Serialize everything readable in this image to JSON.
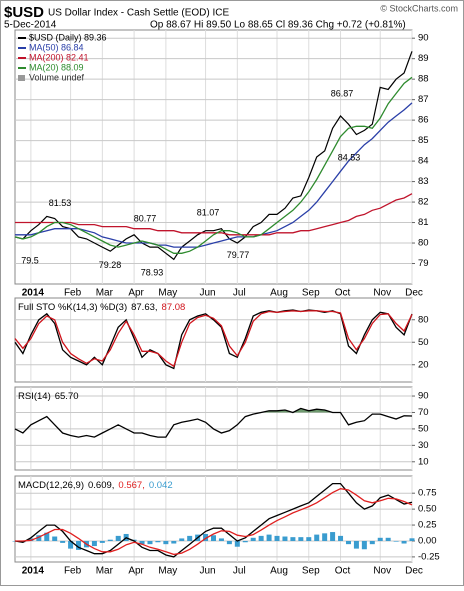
{
  "header": {
    "symbol": "$USD",
    "title": "US Dollar Index - Cash Settle (EOD) ICE",
    "source": "© StockCharts.com",
    "date": "5-Dec-2014",
    "quote": "Op 88.67 Hi 89.50 Lo 88.65 Cl 89.36 Chg +0.72 (+0.81%)"
  },
  "chart_data": [
    {
      "type": "line",
      "categories": [
        null,
        null,
        "2014",
        null,
        null,
        null,
        null,
        "Feb",
        null,
        null,
        null,
        "Mar",
        null,
        null,
        null,
        "Apr",
        null,
        null,
        null,
        "May",
        null,
        null,
        null,
        null,
        "Jun",
        null,
        null,
        null,
        "Jul",
        null,
        null,
        null,
        null,
        "Aug",
        null,
        null,
        null,
        "Sep",
        null,
        null,
        null,
        "Oct",
        null,
        null,
        null,
        null,
        "Nov",
        null,
        null,
        null,
        "Dec"
      ],
      "ylim": [
        78,
        90.4
      ],
      "yticks": [
        79,
        80,
        81,
        82,
        83,
        84,
        85,
        86,
        87,
        88,
        89,
        90
      ],
      "grid": true,
      "series": [
        {
          "name": "$USD (Daily) 89.36",
          "color": "#000000",
          "values": [
            80.3,
            80.2,
            80.6,
            80.9,
            81.3,
            81.2,
            80.8,
            80.7,
            80.3,
            80.2,
            80.0,
            79.8,
            79.6,
            79.9,
            80.2,
            80.4,
            80.0,
            79.8,
            79.8,
            79.5,
            79.2,
            79.8,
            80.1,
            80.4,
            80.6,
            80.6,
            80.7,
            80.2,
            80.0,
            80.3,
            80.8,
            81.0,
            81.4,
            81.4,
            81.7,
            82.2,
            82.3,
            83.2,
            84.2,
            84.5,
            85.6,
            86.2,
            85.8,
            85.3,
            85.5,
            85.8,
            87.6,
            87.5,
            88.0,
            88.3,
            89.36
          ]
        },
        {
          "name": "MA(50) 86.84",
          "color": "#2a3fa8",
          "values": [
            80.4,
            80.4,
            80.4,
            80.5,
            80.6,
            80.7,
            80.7,
            80.7,
            80.7,
            80.6,
            80.5,
            80.3,
            80.2,
            80.1,
            80.0,
            80.0,
            80.0,
            80.0,
            79.9,
            79.9,
            79.8,
            79.8,
            79.8,
            79.8,
            79.9,
            80.0,
            80.1,
            80.2,
            80.3,
            80.3,
            80.3,
            80.4,
            80.5,
            80.6,
            80.8,
            81.0,
            81.3,
            81.6,
            82.0,
            82.5,
            83.0,
            83.5,
            84.0,
            84.4,
            84.8,
            85.1,
            85.5,
            85.9,
            86.2,
            86.5,
            86.84
          ]
        },
        {
          "name": "MA(200) 82.41",
          "color": "#c0142c",
          "values": [
            81.0,
            81.0,
            81.0,
            81.0,
            81.0,
            81.0,
            81.0,
            81.0,
            80.9,
            80.9,
            80.9,
            80.8,
            80.8,
            80.8,
            80.8,
            80.7,
            80.7,
            80.7,
            80.6,
            80.6,
            80.6,
            80.5,
            80.5,
            80.5,
            80.5,
            80.5,
            80.5,
            80.4,
            80.4,
            80.4,
            80.4,
            80.4,
            80.4,
            80.5,
            80.5,
            80.5,
            80.6,
            80.6,
            80.7,
            80.8,
            80.9,
            81.0,
            81.1,
            81.3,
            81.4,
            81.6,
            81.7,
            81.9,
            82.1,
            82.2,
            82.41
          ]
        },
        {
          "name": "MA(20) 88.09",
          "color": "#2e8b2e",
          "values": [
            80.3,
            80.2,
            80.3,
            80.5,
            80.8,
            81.0,
            81.0,
            80.9,
            80.7,
            80.5,
            80.3,
            80.1,
            79.9,
            79.8,
            79.9,
            80.0,
            80.1,
            80.0,
            79.9,
            79.7,
            79.5,
            79.5,
            79.6,
            79.8,
            80.1,
            80.4,
            80.6,
            80.6,
            80.5,
            80.3,
            80.3,
            80.4,
            80.7,
            81.0,
            81.3,
            81.6,
            82.0,
            82.5,
            83.1,
            83.8,
            84.5,
            85.2,
            85.6,
            85.7,
            85.7,
            85.6,
            86.1,
            86.8,
            87.3,
            87.8,
            88.09
          ]
        }
      ],
      "legend_extra": "Volume undef",
      "annotations": [
        81.53,
        80.77,
        81.07,
        86.87,
        79.5,
        79.28,
        78.93,
        79.77,
        84.53
      ]
    },
    {
      "type": "line",
      "label": "Full STO %K(14,3) %D(3)",
      "readings": [
        "87.63,",
        "87.08"
      ],
      "ylim": [
        -3,
        109
      ],
      "yticks": [
        20,
        50,
        80
      ],
      "grid": true,
      "series": [
        {
          "color": "#000000",
          "values": [
            50,
            35,
            60,
            80,
            88,
            75,
            40,
            30,
            25,
            20,
            30,
            20,
            45,
            70,
            80,
            55,
            30,
            40,
            35,
            20,
            15,
            60,
            80,
            85,
            88,
            80,
            70,
            35,
            30,
            55,
            85,
            90,
            92,
            90,
            92,
            93,
            91,
            93,
            92,
            90,
            92,
            88,
            45,
            35,
            60,
            80,
            90,
            88,
            70,
            60,
            87.63
          ]
        },
        {
          "color": "#d0141c",
          "values": [
            55,
            42,
            55,
            75,
            85,
            80,
            50,
            35,
            28,
            22,
            28,
            25,
            40,
            62,
            78,
            60,
            38,
            38,
            35,
            25,
            18,
            50,
            75,
            83,
            86,
            82,
            72,
            45,
            32,
            50,
            78,
            88,
            91,
            90,
            91,
            92,
            91,
            92,
            92,
            91,
            91,
            89,
            55,
            40,
            55,
            75,
            87,
            88,
            75,
            65,
            87.08
          ]
        }
      ]
    },
    {
      "type": "line",
      "label": "RSI(14)",
      "readings": [
        "65.70"
      ],
      "ylim": [
        0,
        101
      ],
      "yticks": [
        10,
        30,
        50,
        70,
        90
      ],
      "grid": true,
      "fill_above": 70,
      "fill_color": "#6f9a6f",
      "series": [
        {
          "color": "#000000",
          "values": [
            50,
            45,
            55,
            60,
            65,
            55,
            45,
            42,
            40,
            42,
            40,
            45,
            50,
            55,
            50,
            45,
            45,
            42,
            40,
            40,
            55,
            58,
            60,
            62,
            58,
            50,
            45,
            48,
            55,
            65,
            68,
            70,
            72,
            72,
            73,
            70,
            75,
            72,
            74,
            73,
            70,
            70,
            55,
            58,
            60,
            68,
            68,
            65,
            62,
            66,
            65.7
          ]
        }
      ]
    },
    {
      "type": "line",
      "label": "MACD(12,26,9)",
      "readings": [
        "0.609,",
        "0.567,",
        "0.042"
      ],
      "categories": [
        null,
        null,
        "2014",
        null,
        null,
        null,
        null,
        "Feb",
        null,
        null,
        null,
        "Mar",
        null,
        null,
        null,
        "Apr",
        null,
        null,
        null,
        "May",
        null,
        null,
        null,
        null,
        "Jun",
        null,
        null,
        null,
        "Jul",
        null,
        null,
        null,
        null,
        "Aug",
        null,
        null,
        null,
        "Sep",
        null,
        null,
        null,
        "Oct",
        null,
        null,
        null,
        null,
        "Nov",
        null,
        null,
        null,
        "Dec"
      ],
      "ylim": [
        -0.33,
        1.02
      ],
      "yticks": [
        0.75,
        {
          "value": 0.5,
          "label": "0.50"
        },
        0.25,
        {
          "value": 0,
          "label": "0.00"
        },
        -0.25
      ],
      "grid": true,
      "series": [
        {
          "color": "#000000",
          "values": [
            0,
            -0.02,
            0.05,
            0.15,
            0.25,
            0.25,
            0.15,
            0,
            -0.1,
            -0.15,
            -0.2,
            -0.2,
            -0.15,
            -0.05,
            0.05,
            0,
            -0.1,
            -0.15,
            -0.15,
            -0.22,
            -0.25,
            -0.15,
            -0.05,
            0.05,
            0.15,
            0.2,
            0.2,
            0.1,
            0,
            0.05,
            0.15,
            0.25,
            0.35,
            0.4,
            0.45,
            0.5,
            0.55,
            0.6,
            0.7,
            0.8,
            0.9,
            0.9,
            0.75,
            0.6,
            0.5,
            0.55,
            0.68,
            0.72,
            0.65,
            0.58,
            0.609
          ]
        },
        {
          "color": "#e02020",
          "values": [
            0,
            0,
            0.01,
            0.06,
            0.12,
            0.18,
            0.18,
            0.12,
            0.04,
            -0.05,
            -0.12,
            -0.17,
            -0.17,
            -0.13,
            -0.06,
            -0.02,
            -0.05,
            -0.1,
            -0.13,
            -0.17,
            -0.21,
            -0.19,
            -0.13,
            -0.05,
            0.04,
            0.11,
            0.16,
            0.15,
            0.09,
            0.07,
            0.1,
            0.17,
            0.25,
            0.32,
            0.38,
            0.44,
            0.49,
            0.54,
            0.6,
            0.68,
            0.76,
            0.82,
            0.8,
            0.72,
            0.63,
            0.6,
            0.63,
            0.67,
            0.66,
            0.62,
            0.567
          ]
        },
        {
          "type": "bar",
          "color": "#3a9ccf",
          "values": [
            0,
            -0.02,
            0.04,
            0.09,
            0.13,
            0.07,
            -0.03,
            -0.12,
            -0.14,
            -0.1,
            -0.08,
            -0.03,
            0.02,
            0.08,
            0.11,
            0.02,
            -0.05,
            -0.05,
            -0.02,
            -0.05,
            -0.04,
            0.04,
            0.08,
            0.1,
            0.11,
            0.09,
            0.04,
            -0.05,
            -0.09,
            -0.02,
            0.05,
            0.08,
            0.1,
            0.08,
            0.07,
            0.06,
            0.06,
            0.06,
            0.1,
            0.12,
            0.14,
            0.08,
            -0.05,
            -0.12,
            -0.13,
            -0.05,
            0.05,
            0.05,
            -0.01,
            -0.04,
            0.042
          ]
        }
      ]
    }
  ]
}
